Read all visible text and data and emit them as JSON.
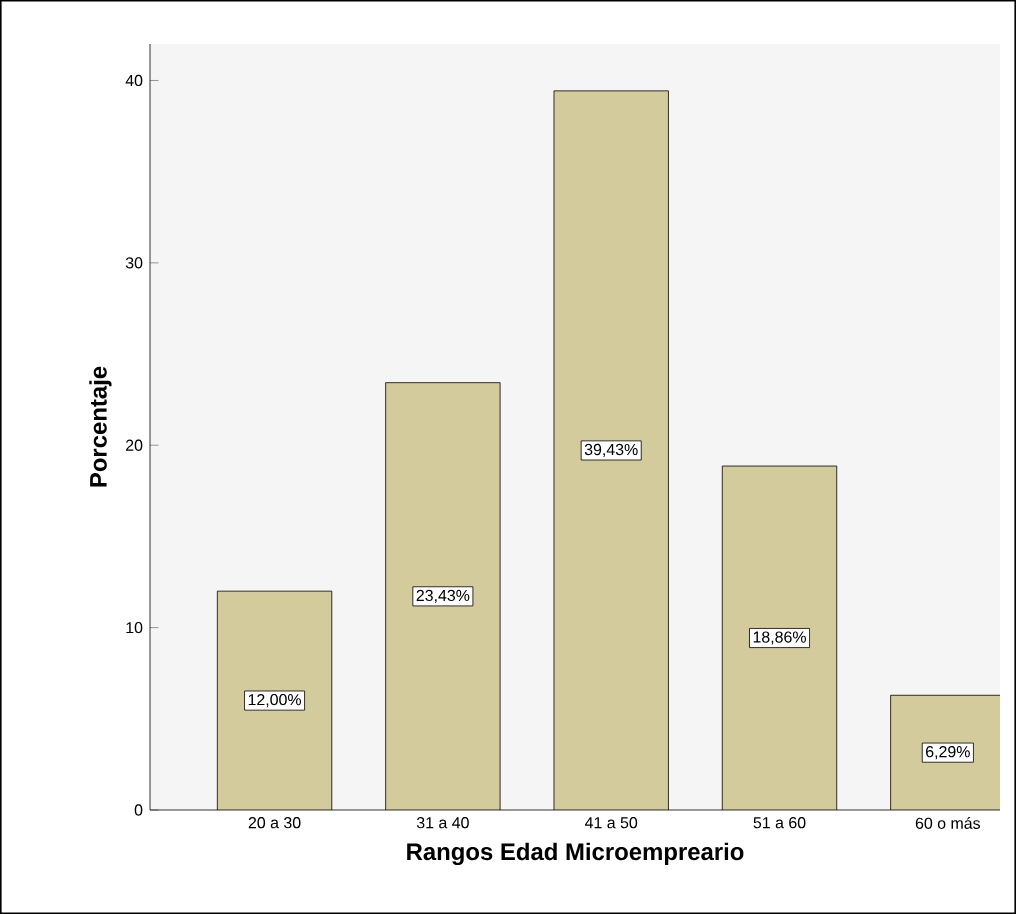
{
  "chart_data": {
    "type": "bar",
    "xlabel": "Rangos Edad Microempreario",
    "ylabel": "Porcentaje",
    "categories": [
      "20 a 30",
      "31 a 40",
      "41 a 50",
      "51 a 60",
      "60 o más"
    ],
    "values": [
      12.0,
      23.43,
      39.43,
      18.86,
      6.29
    ],
    "value_labels": [
      "12,00%",
      "23,43%",
      "39,43%",
      "18,86%",
      "6,29%"
    ],
    "color": "#d3cb9c",
    "ylim": [
      0,
      42
    ],
    "yticks": [
      0,
      10,
      20,
      30,
      40
    ]
  }
}
